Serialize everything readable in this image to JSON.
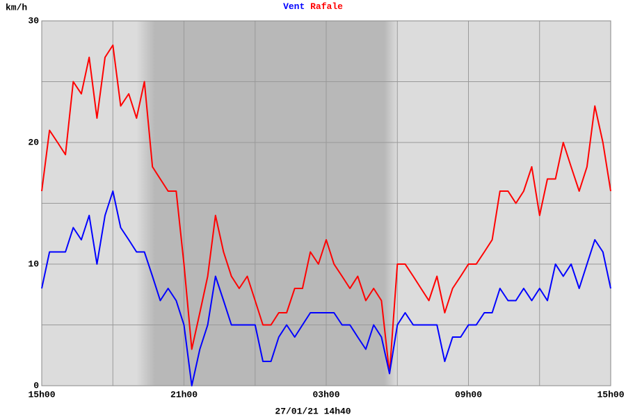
{
  "chart_data": {
    "type": "line",
    "y_label": "km/h",
    "footer": "27/01/21 14h40",
    "x": [
      0,
      0.33,
      0.67,
      1,
      1.33,
      1.67,
      2,
      2.33,
      2.67,
      3,
      3.33,
      3.67,
      4,
      4.33,
      4.67,
      5,
      5.33,
      5.67,
      6,
      6.33,
      6.67,
      7,
      7.33,
      7.67,
      8,
      8.33,
      8.67,
      9,
      9.33,
      9.67,
      10,
      10.33,
      10.67,
      11,
      11.33,
      11.67,
      12,
      12.33,
      12.67,
      13,
      13.33,
      13.67,
      14,
      14.33,
      14.67,
      15,
      15.33,
      15.67,
      16,
      16.33,
      16.67,
      17,
      17.33,
      17.67,
      18,
      18.33,
      18.67,
      19,
      19.33,
      19.67,
      20,
      20.33,
      20.67,
      21,
      21.33,
      21.67,
      22,
      22.33,
      22.67,
      23,
      23.33,
      23.67,
      24
    ],
    "series": [
      {
        "name": "Vent",
        "color": "#0000ff",
        "values": [
          8,
          11,
          11,
          11,
          13,
          12,
          14,
          10,
          14,
          16,
          13,
          12,
          11,
          11,
          9,
          7,
          8,
          7,
          5,
          0,
          3,
          5,
          9,
          7,
          5,
          5,
          5,
          5,
          2,
          2,
          4,
          5,
          4,
          5,
          6,
          6,
          6,
          6,
          5,
          5,
          4,
          3,
          5,
          4,
          1,
          5,
          6,
          5,
          5,
          5,
          5,
          2,
          4,
          4,
          5,
          5,
          6,
          6,
          8,
          7,
          7,
          8,
          7,
          8,
          7,
          10,
          9,
          10,
          8,
          10,
          12,
          11,
          8
        ]
      },
      {
        "name": "Rafale",
        "color": "#ff0000",
        "values": [
          16,
          21,
          20,
          19,
          25,
          24,
          27,
          22,
          27,
          28,
          23,
          24,
          22,
          25,
          18,
          17,
          16,
          16,
          10,
          3,
          6,
          9,
          14,
          11,
          9,
          8,
          9,
          7,
          5,
          5,
          6,
          6,
          8,
          8,
          11,
          10,
          12,
          10,
          9,
          8,
          9,
          7,
          8,
          7,
          1,
          10,
          10,
          9,
          8,
          7,
          9,
          6,
          8,
          9,
          10,
          10,
          11,
          12,
          16,
          16,
          15,
          16,
          18,
          14,
          17,
          17,
          20,
          18,
          16,
          18,
          23,
          20,
          16
        ]
      }
    ],
    "xlim": [
      0,
      24
    ],
    "xticks": [
      {
        "value": 0,
        "label": "15h00"
      },
      {
        "value": 6,
        "label": "21h00"
      },
      {
        "value": 12,
        "label": "03h00"
      },
      {
        "value": 18,
        "label": "09h00"
      },
      {
        "value": 24,
        "label": "15h00"
      }
    ],
    "x_minor_grid": [
      3,
      9,
      15,
      21
    ],
    "ylim": [
      0,
      30
    ],
    "yticks": [
      0,
      10,
      20,
      30
    ],
    "y_minor_grid": [
      5,
      15,
      25
    ],
    "night": [
      4,
      15
    ],
    "grid": true
  }
}
